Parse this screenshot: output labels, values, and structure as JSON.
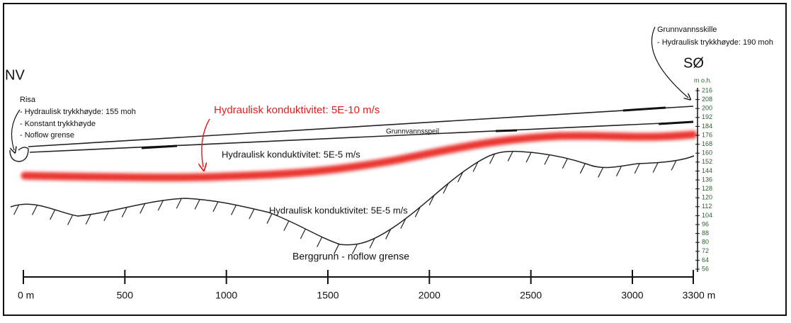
{
  "labels": {
    "west": "NV",
    "east": "SØ",
    "west_boundary": {
      "name": "Risa",
      "lines": [
        "- Hydraulisk trykkhøyde: 155 moh",
        "- Konstant trykkhøyde",
        "- Noflow grense"
      ]
    },
    "east_boundary": {
      "name": "Grunnvannsskille",
      "lines": [
        "- Hydraulisk trykkhøyde: 190 moh"
      ]
    },
    "upper_layer": "Hydraulisk konduktivitet: 5E-10 m/s",
    "water_table": "Grunnvannsspeil",
    "aquifer": "Hydraulisk konduktivitet: 5E-5 m/s",
    "lower_layer": "Hydraulisk konduktivitet: 5E-5 m/s",
    "bedrock": "Berggrunn - noflow grense"
  },
  "elevation_axis": {
    "unit": "m o.h.",
    "ticks": [
      216,
      208,
      200,
      192,
      184,
      176,
      168,
      160,
      152,
      144,
      136,
      128,
      120,
      112,
      104,
      96,
      88,
      80,
      72,
      64,
      56
    ]
  },
  "distance_axis": {
    "ticks": [
      {
        "value": 0,
        "label": "0 m"
      },
      500,
      1000,
      1500,
      2000,
      2500,
      3000,
      {
        "value": 3300,
        "label": "3300 m"
      }
    ]
  }
}
